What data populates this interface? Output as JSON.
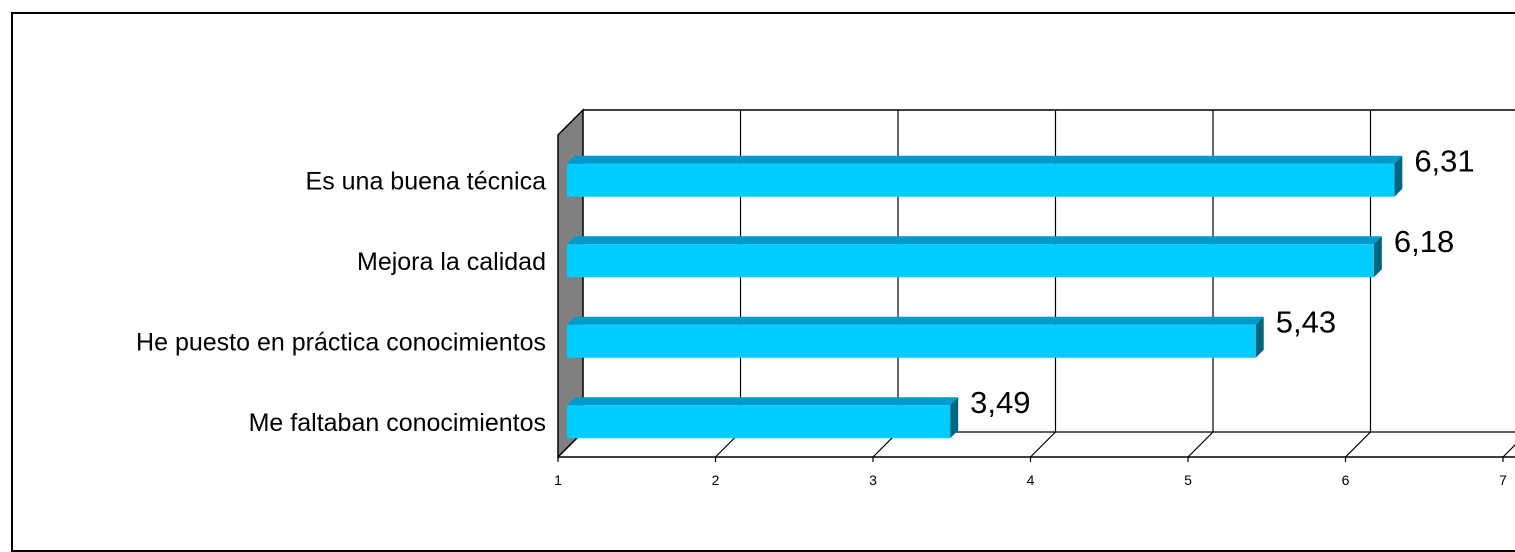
{
  "chart_data": {
    "type": "bar",
    "orientation": "horizontal",
    "style": "3d",
    "categories": [
      "Es una buena técnica",
      "Mejora la calidad",
      "He puesto en práctica conocimientos",
      "Me faltaban conocimientos"
    ],
    "values": [
      6.31,
      6.18,
      5.43,
      3.49
    ],
    "value_labels": [
      "6,31",
      "6,18",
      "5,43",
      "3,49"
    ],
    "title": "",
    "xlabel": "",
    "ylabel": "",
    "xlim": [
      1,
      7
    ],
    "x_ticks": [
      "1",
      "2",
      "3",
      "4",
      "5",
      "6",
      "7"
    ],
    "grid": "vertical",
    "legend": "none",
    "colors": {
      "bar_front": "#00ccff",
      "bar_top": "#0099cc",
      "bar_side": "#006680",
      "side_wall": "#808080",
      "gridline": "#000000"
    }
  }
}
